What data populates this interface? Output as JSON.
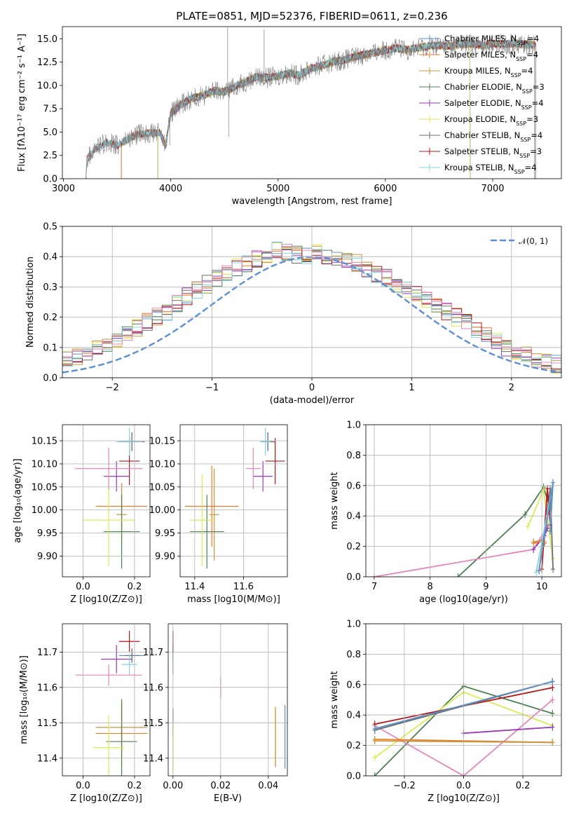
{
  "figure": {
    "title": "PLATE=0851, MJD=52376, FIBERID=0611, z=0.236",
    "colors": {
      "Chabrier MILES": "#5b8fc9",
      "Salpeter MILES": "#ee7d2c",
      "Kroupa MILES": "#c8963c",
      "Chabrier ELODIE": "#4d7f52",
      "Salpeter ELODIE": "#9b39b8",
      "Kroupa ELODIE": "#dcea55",
      "Chabrier STELIB": "#6e6e6e",
      "Salpeter STELIB": "#b5161b",
      "Kroupa STELIB": "#84d4e0",
      "extra_pink": "#e685bd",
      "normal": "#5b8fd3"
    }
  },
  "chart_data": [
    {
      "id": "spectrum",
      "type": "line",
      "xlabel": "wavelength [Angstrom, rest frame]",
      "ylabel": "Flux [f_λ 10^-17 erg cm^-2 s^-1 A^-1]",
      "xlim": [
        2990,
        7640
      ],
      "ylim": [
        0,
        16.3
      ],
      "xticks": [
        3000,
        4000,
        5000,
        6000,
        7000
      ],
      "yticks": [
        0.0,
        2.5,
        5.0,
        7.5,
        10.0,
        12.5,
        15.0
      ],
      "legend_position": "top-right",
      "legend": [
        {
          "name": "Chabrier MILES",
          "nssp": "4"
        },
        {
          "name": "Salpeter MILES",
          "nssp": "4"
        },
        {
          "name": "Kroupa MILES",
          "nssp": "4"
        },
        {
          "name": "Chabrier ELODIE",
          "nssp": "3"
        },
        {
          "name": "Salpeter ELODIE",
          "nssp": "4"
        },
        {
          "name": "Kroupa ELODIE",
          "nssp": "3"
        },
        {
          "name": "Chabrier STELIB",
          "nssp": "4"
        },
        {
          "name": "Salpeter STELIB",
          "nssp": "3"
        },
        {
          "name": "Kroupa STELIB",
          "nssp": "4"
        }
      ],
      "data_continuum": [
        [
          3210,
          0.0
        ],
        [
          3220,
          2.1
        ],
        [
          3300,
          3.2
        ],
        [
          3400,
          3.9
        ],
        [
          3500,
          3.6
        ],
        [
          3600,
          4.2
        ],
        [
          3700,
          4.8
        ],
        [
          3800,
          4.9
        ],
        [
          3900,
          4.9
        ],
        [
          3950,
          3.6
        ],
        [
          4000,
          7.0
        ],
        [
          4100,
          8.0
        ],
        [
          4200,
          8.6
        ],
        [
          4300,
          8.9
        ],
        [
          4400,
          9.4
        ],
        [
          4500,
          9.3
        ],
        [
          4600,
          9.9
        ],
        [
          4700,
          10.4
        ],
        [
          4800,
          10.9
        ],
        [
          4900,
          10.8
        ],
        [
          5000,
          11.0
        ],
        [
          5100,
          11.3
        ],
        [
          5200,
          11.1
        ],
        [
          5300,
          11.8
        ],
        [
          5400,
          12.1
        ],
        [
          5500,
          12.5
        ],
        [
          5600,
          12.7
        ],
        [
          5700,
          13.0
        ],
        [
          5800,
          13.3
        ],
        [
          5900,
          13.5
        ],
        [
          6000,
          13.8
        ],
        [
          6100,
          14.0
        ],
        [
          6200,
          13.8
        ],
        [
          6300,
          14.0
        ],
        [
          6400,
          14.2
        ],
        [
          6500,
          14.3
        ],
        [
          6600,
          14.2
        ],
        [
          6700,
          14.4
        ],
        [
          6800,
          14.5
        ],
        [
          6900,
          14.3
        ],
        [
          7000,
          14.5
        ],
        [
          7100,
          14.4
        ],
        [
          7200,
          14.5
        ],
        [
          7300,
          14.4
        ],
        [
          7390,
          14.3
        ]
      ],
      "model_starts": {
        "MILES": 3540,
        "ELODIE": 3880,
        "STELIB": 3210
      },
      "model_ends": {
        "MILES": 7400,
        "ELODIE": 6790,
        "STELIB": 7400
      }
    },
    {
      "id": "residuals",
      "type": "bar",
      "xlabel": "(data-model)/error",
      "ylabel": "Normed distribution",
      "xlim": [
        -2.5,
        2.5
      ],
      "ylim": [
        0,
        0.5
      ],
      "xticks": [
        -2,
        -1,
        0,
        1,
        2
      ],
      "yticks": [
        0.0,
        0.1,
        0.2,
        0.3,
        0.4,
        0.5
      ],
      "grid": true,
      "legend_position": "top-right",
      "legend": [
        "𝒩(0, 1)"
      ],
      "bin_edges_step": 0.1,
      "hist_envelope": [
        0.025,
        0.03,
        0.04,
        0.045,
        0.055,
        0.06,
        0.07,
        0.085,
        0.1,
        0.115,
        0.13,
        0.15,
        0.165,
        0.185,
        0.2,
        0.22,
        0.245,
        0.27,
        0.29,
        0.31,
        0.33,
        0.35,
        0.365,
        0.38,
        0.395,
        0.41,
        0.42,
        0.415,
        0.405,
        0.4,
        0.41,
        0.405,
        0.4,
        0.39,
        0.38,
        0.36,
        0.345,
        0.33,
        0.31,
        0.29,
        0.275,
        0.26,
        0.24,
        0.22,
        0.2,
        0.18,
        0.16,
        0.14,
        0.12,
        0.1,
        0.09,
        0.075,
        0.065,
        0.055,
        0.045,
        0.04,
        0.035,
        0.03,
        0.027,
        0.025
      ]
    },
    {
      "id": "age-vs-Z",
      "type": "scatter",
      "xlabel": "Z [log10(Z/Z⊙)]",
      "ylabel": "age [log10(age/yr)]",
      "xlim": [
        -0.08,
        0.26
      ],
      "ylim": [
        9.855,
        10.185
      ],
      "xticks": [
        0.0,
        0.2
      ],
      "yticks": [
        9.9,
        9.95,
        10.0,
        10.05,
        10.1,
        10.15
      ],
      "points": [
        {
          "series": "Chabrier MILES",
          "x": 0.19,
          "y": 10.148,
          "xerr": 0.03,
          "yerr": 0.02
        },
        {
          "series": "Salpeter MILES",
          "x": 0.15,
          "y": 10.008,
          "xerr": 0.1,
          "yerr": 0.05
        },
        {
          "series": "Kroupa MILES",
          "x": 0.15,
          "y": 9.99,
          "xerr": 0.02,
          "yerr": 0.06
        },
        {
          "series": "Chabrier ELODIE",
          "x": 0.15,
          "y": 9.953,
          "xerr": 0.07,
          "yerr": 0.08
        },
        {
          "series": "Salpeter ELODIE",
          "x": 0.13,
          "y": 10.073,
          "xerr": 0.05,
          "yerr": 0.033
        },
        {
          "series": "Kroupa ELODIE",
          "x": 0.1,
          "y": 9.978,
          "xerr": 0.1,
          "yerr": 0.1
        },
        {
          "series": "Chabrier STELIB",
          "x": 0.19,
          "y": 10.148,
          "xerr": 0.05,
          "yerr": 0.02
        },
        {
          "series": "Salpeter STELIB",
          "x": 0.18,
          "y": 10.106,
          "xerr": 0.04,
          "yerr": 0.052
        },
        {
          "series": "Kroupa STELIB",
          "x": 0.18,
          "y": 10.148,
          "xerr": 0.05,
          "yerr": 0.03
        },
        {
          "series": "extra_pink",
          "x": 0.1,
          "y": 10.09,
          "xerr": 0.13,
          "yerr": 0.045
        }
      ]
    },
    {
      "id": "age-vs-mass",
      "type": "scatter",
      "xlabel": "mass [log10(M/M⊙)]",
      "ylabel": "",
      "xlim": [
        11.34,
        11.78
      ],
      "ylim": [
        9.855,
        10.185
      ],
      "xticks": [
        11.4,
        11.6
      ],
      "yticks": [
        9.9,
        9.95,
        10.0,
        10.05,
        10.1,
        10.15
      ],
      "points": [
        {
          "series": "Chabrier MILES",
          "x": 11.7,
          "y": 10.148,
          "xerr": 0.03,
          "yerr": 0.02
        },
        {
          "series": "Salpeter MILES",
          "x": 11.47,
          "y": 10.008,
          "xerr": 0.11,
          "yerr": 0.088
        },
        {
          "series": "Kroupa MILES",
          "x": 11.48,
          "y": 9.99,
          "xerr": 0.02,
          "yerr": 0.1
        },
        {
          "series": "Chabrier ELODIE",
          "x": 11.45,
          "y": 9.953,
          "xerr": 0.07,
          "yerr": 0.08
        },
        {
          "series": "Salpeter ELODIE",
          "x": 11.68,
          "y": 10.073,
          "xerr": 0.04,
          "yerr": 0.033
        },
        {
          "series": "Kroupa ELODIE",
          "x": 11.43,
          "y": 9.978,
          "xerr": 0.05,
          "yerr": 0.1
        },
        {
          "series": "Chabrier STELIB",
          "x": 11.7,
          "y": 10.148,
          "xerr": 0.03,
          "yerr": 0.02
        },
        {
          "series": "Salpeter STELIB",
          "x": 11.73,
          "y": 10.106,
          "xerr": 0.04,
          "yerr": 0.05
        },
        {
          "series": "Kroupa STELIB",
          "x": 11.69,
          "y": 10.148,
          "xerr": 0.02,
          "yerr": 0.03
        },
        {
          "series": "extra_pink",
          "x": 11.64,
          "y": 10.09,
          "xerr": 0.03,
          "yerr": 0.045
        }
      ]
    },
    {
      "id": "weight-vs-age",
      "type": "line",
      "xlabel": "age (log10(age/yr))",
      "ylabel": "mass weight",
      "xlim": [
        6.85,
        10.35
      ],
      "ylim": [
        0,
        1.0
      ],
      "xticks": [
        7,
        8,
        9,
        10
      ],
      "yticks": [
        0.0,
        0.2,
        0.4,
        0.6,
        0.8,
        1.0
      ],
      "grid": true,
      "series": [
        {
          "name": "Chabrier ELODIE",
          "points": [
            [
              8.5,
              0.0
            ],
            [
              9.7,
              0.41
            ],
            [
              10.03,
              0.59
            ],
            [
              10.15,
              0.45
            ]
          ]
        },
        {
          "name": "extra_pink",
          "points": [
            [
              7.0,
              0.0
            ],
            [
              9.85,
              0.18
            ],
            [
              10.1,
              0.33
            ]
          ]
        },
        {
          "name": "Kroupa ELODIE",
          "points": [
            [
              9.75,
              0.33
            ],
            [
              10.03,
              0.57
            ],
            [
              10.2,
              0.12
            ]
          ]
        },
        {
          "name": "Salpeter ELODIE",
          "points": [
            [
              9.85,
              0.18
            ],
            [
              10.05,
              0.27
            ],
            [
              10.1,
              0.32
            ]
          ]
        },
        {
          "name": "Salpeter MILES",
          "points": [
            [
              9.85,
              0.22
            ],
            [
              10.02,
              0.24
            ],
            [
              10.05,
              0.23
            ]
          ]
        },
        {
          "name": "Kroupa MILES",
          "points": [
            [
              9.85,
              0.23
            ],
            [
              10.02,
              0.24
            ],
            [
              10.05,
              0.22
            ]
          ]
        },
        {
          "name": "Chabrier STELIB",
          "points": [
            [
              9.95,
              0.04
            ],
            [
              10.15,
              0.58
            ],
            [
              10.2,
              0.05
            ]
          ]
        },
        {
          "name": "Salpeter STELIB",
          "points": [
            [
              10.0,
              0.05
            ],
            [
              10.1,
              0.58
            ],
            [
              10.15,
              0.34
            ]
          ]
        },
        {
          "name": "Kroupa STELIB",
          "points": [
            [
              9.9,
              0.03
            ],
            [
              10.2,
              0.62
            ],
            [
              10.15,
              0.35
            ]
          ]
        },
        {
          "name": "Chabrier MILES",
          "points": [
            [
              9.95,
              0.04
            ],
            [
              10.2,
              0.62
            ],
            [
              10.15,
              0.3
            ]
          ]
        }
      ]
    },
    {
      "id": "mass-vs-Z",
      "type": "scatter",
      "xlabel": "Z [log10(Z/Z⊙)]",
      "ylabel": "mass [log10(M/M⊙)]",
      "xlim": [
        -0.08,
        0.26
      ],
      "ylim": [
        11.35,
        11.78
      ],
      "xticks": [
        0.0,
        0.2
      ],
      "yticks": [
        11.4,
        11.5,
        11.6,
        11.7
      ],
      "points": [
        {
          "series": "Chabrier MILES",
          "x": 0.19,
          "y": 11.69,
          "xerr": 0.05,
          "yerr": 0.02
        },
        {
          "series": "Salpeter MILES",
          "x": 0.15,
          "y": 11.47,
          "xerr": 0.1,
          "yerr": 0.09
        },
        {
          "series": "Kroupa MILES",
          "x": 0.15,
          "y": 11.487,
          "xerr": 0.1,
          "yerr": 0.07
        },
        {
          "series": "Chabrier ELODIE",
          "x": 0.15,
          "y": 11.447,
          "xerr": 0.06,
          "yerr": 0.12
        },
        {
          "series": "Salpeter ELODIE",
          "x": 0.13,
          "y": 11.68,
          "xerr": 0.06,
          "yerr": 0.04
        },
        {
          "series": "Kroupa ELODIE",
          "x": 0.1,
          "y": 11.43,
          "xerr": 0.06,
          "yerr": 0.09
        },
        {
          "series": "Chabrier STELIB",
          "x": 0.19,
          "y": 11.69,
          "xerr": 0.03,
          "yerr": 0.02
        },
        {
          "series": "Salpeter STELIB",
          "x": 0.18,
          "y": 11.73,
          "xerr": 0.04,
          "yerr": 0.03
        },
        {
          "series": "Kroupa STELIB",
          "x": 0.18,
          "y": 11.665,
          "xerr": 0.03,
          "yerr": 0.03
        },
        {
          "series": "extra_pink",
          "x": 0.1,
          "y": 11.635,
          "xerr": 0.13,
          "yerr": 0.03
        }
      ]
    },
    {
      "id": "mass-vs-EBV",
      "type": "scatter",
      "xlabel": "E(B-V)",
      "ylabel": "",
      "xlim": [
        -0.002,
        0.048
      ],
      "ylim": [
        11.35,
        11.78
      ],
      "xticks": [
        0.0,
        0.02,
        0.04
      ],
      "yticks": [
        11.4,
        11.5,
        11.6,
        11.7
      ],
      "points": [
        {
          "series": "Chabrier MILES",
          "x": 0.047,
          "y": 11.46,
          "xerr": 0,
          "yerr": 0.09
        },
        {
          "series": "Salpeter MILES",
          "x": 0.043,
          "y": 11.46,
          "xerr": 0,
          "yerr": 0.085
        },
        {
          "series": "Kroupa MILES",
          "x": 0.043,
          "y": 11.46,
          "xerr": 0,
          "yerr": 0.08
        },
        {
          "series": "Chabrier ELODIE",
          "x": 0.0,
          "y": 11.5,
          "xerr": 0,
          "yerr": 0.04
        },
        {
          "series": "Salpeter ELODIE",
          "x": 0.0,
          "y": 11.68,
          "xerr": 0,
          "yerr": 0.04
        },
        {
          "series": "Kroupa ELODIE",
          "x": 0.0,
          "y": 11.43,
          "xerr": 0,
          "yerr": 0.07
        },
        {
          "series": "Chabrier STELIB",
          "x": 0.0,
          "y": 11.69,
          "xerr": 0,
          "yerr": 0.02
        },
        {
          "series": "Salpeter STELIB",
          "x": 0.0,
          "y": 11.73,
          "xerr": 0,
          "yerr": 0.03
        },
        {
          "series": "Kroupa STELIB",
          "x": 0.0,
          "y": 11.665,
          "xerr": 0,
          "yerr": 0.03
        },
        {
          "series": "extra_pink",
          "x": 0.02,
          "y": 11.6,
          "xerr": 0,
          "yerr": 0.03
        }
      ]
    },
    {
      "id": "weight-vs-Z",
      "type": "line",
      "xlabel": "Z [log10(Z/Z⊙)]",
      "ylabel": "mass weight",
      "xlim": [
        -0.33,
        0.33
      ],
      "ylim": [
        0,
        1.0
      ],
      "xticks": [
        -0.2,
        0.0,
        0.2
      ],
      "yticks": [
        0.0,
        0.2,
        0.4,
        0.6,
        0.8,
        1.0
      ],
      "grid": true,
      "series": [
        {
          "name": "Chabrier ELODIE",
          "points": [
            [
              -0.3,
              0.0
            ],
            [
              0.0,
              0.59
            ],
            [
              0.3,
              0.41
            ]
          ]
        },
        {
          "name": "Kroupa ELODIE",
          "points": [
            [
              -0.3,
              0.12
            ],
            [
              0.0,
              0.55
            ],
            [
              0.3,
              0.33
            ]
          ]
        },
        {
          "name": "extra_pink",
          "points": [
            [
              -0.3,
              0.33
            ],
            [
              0.0,
              0.0
            ],
            [
              0.3,
              0.5
            ]
          ]
        },
        {
          "name": "Salpeter ELODIE",
          "points": [
            [
              0.0,
              0.28
            ],
            [
              0.3,
              0.32
            ]
          ]
        },
        {
          "name": "Salpeter MILES",
          "points": [
            [
              -0.3,
              0.24
            ],
            [
              0.3,
              0.22
            ]
          ]
        },
        {
          "name": "Kroupa MILES",
          "points": [
            [
              -0.3,
              0.23
            ],
            [
              0.3,
              0.22
            ]
          ]
        },
        {
          "name": "Salpeter STELIB",
          "points": [
            [
              -0.3,
              0.34
            ],
            [
              0.3,
              0.58
            ]
          ]
        },
        {
          "name": "Kroupa STELIB",
          "points": [
            [
              -0.3,
              0.3
            ],
            [
              0.3,
              0.62
            ]
          ]
        },
        {
          "name": "Chabrier STELIB",
          "points": [
            [
              -0.3,
              0.3
            ],
            [
              0.3,
              0.62
            ]
          ]
        },
        {
          "name": "Chabrier MILES",
          "points": [
            [
              -0.3,
              0.31
            ],
            [
              0.3,
              0.62
            ]
          ]
        }
      ]
    }
  ]
}
